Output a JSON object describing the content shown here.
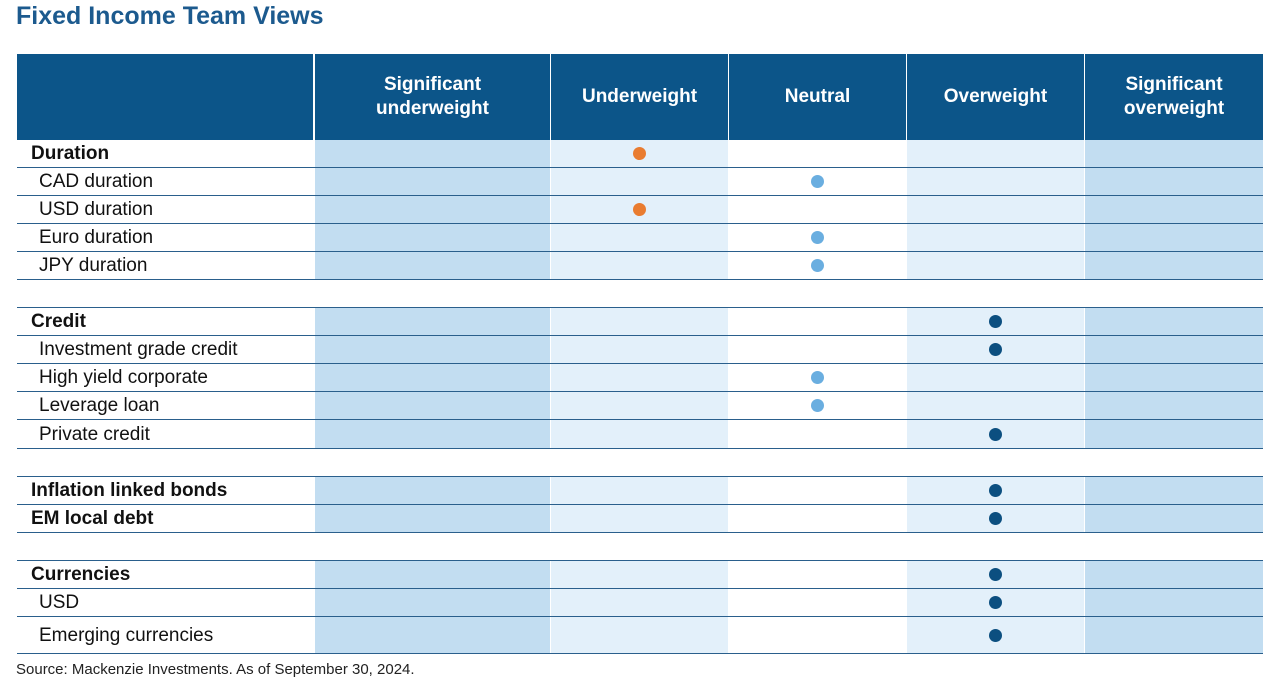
{
  "title": "Fixed Income Team Views",
  "source": "Source: Mackenzie Investments. As of September 30, 2024.",
  "colors": {
    "header": "#0c5589",
    "col_dark": "#c2ddf1",
    "col_light": "#e3f0fa",
    "col_white": "#ffffff",
    "dot_underweight": "#e97c30",
    "dot_neutral": "#6aaee0",
    "dot_overweight": "#0c4f80"
  },
  "chart_data": {
    "type": "table",
    "columns": [
      "Significant underweight",
      "Underweight",
      "Neutral",
      "Overweight",
      "Significant overweight"
    ],
    "rows": [
      {
        "label": "Duration",
        "bold": true,
        "position": "Underweight"
      },
      {
        "label": "CAD duration",
        "bold": false,
        "position": "Neutral"
      },
      {
        "label": "USD duration",
        "bold": false,
        "position": "Underweight"
      },
      {
        "label": "Euro duration",
        "bold": false,
        "position": "Neutral"
      },
      {
        "label": "JPY duration",
        "bold": false,
        "position": "Neutral"
      },
      {
        "spacer": true
      },
      {
        "label": "Credit",
        "bold": true,
        "position": "Overweight"
      },
      {
        "label": "Investment grade credit",
        "bold": false,
        "position": "Overweight"
      },
      {
        "label": "High yield corporate",
        "bold": false,
        "position": "Neutral"
      },
      {
        "label": "Leverage loan",
        "bold": false,
        "position": "Neutral"
      },
      {
        "label": "Private credit",
        "bold": false,
        "position": "Overweight"
      },
      {
        "spacer": true
      },
      {
        "label": "Inflation linked bonds",
        "bold": true,
        "position": "Overweight"
      },
      {
        "label": "EM local debt",
        "bold": true,
        "position": "Overweight"
      },
      {
        "spacer": true
      },
      {
        "label": "Currencies",
        "bold": true,
        "position": "Overweight"
      },
      {
        "label": "USD",
        "bold": false,
        "position": "Overweight"
      },
      {
        "label": "Emerging currencies",
        "bold": false,
        "position": "Overweight"
      }
    ]
  }
}
